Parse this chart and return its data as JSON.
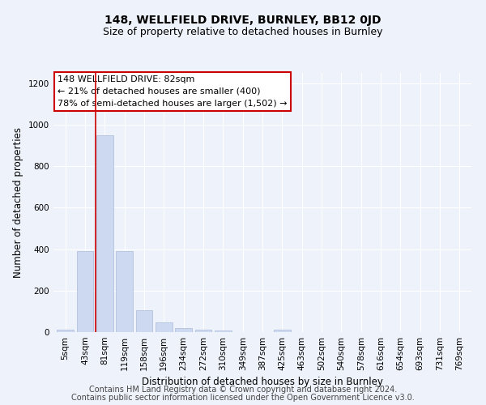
{
  "title": "148, WELLFIELD DRIVE, BURNLEY, BB12 0JD",
  "subtitle": "Size of property relative to detached houses in Burnley",
  "xlabel": "Distribution of detached houses by size in Burnley",
  "ylabel": "Number of detached properties",
  "categories": [
    "5sqm",
    "43sqm",
    "81sqm",
    "119sqm",
    "158sqm",
    "196sqm",
    "234sqm",
    "272sqm",
    "310sqm",
    "349sqm",
    "387sqm",
    "425sqm",
    "463sqm",
    "502sqm",
    "540sqm",
    "578sqm",
    "616sqm",
    "654sqm",
    "693sqm",
    "731sqm",
    "769sqm"
  ],
  "values": [
    10,
    390,
    950,
    390,
    105,
    48,
    18,
    10,
    8,
    0,
    0,
    10,
    0,
    0,
    0,
    0,
    0,
    0,
    0,
    0,
    0
  ],
  "bar_color": "#ccd9f0",
  "bar_edge_color": "#aabbd8",
  "vline_x": 1.55,
  "vline_color": "#cc0000",
  "annotation_text": "148 WELLFIELD DRIVE: 82sqm\n← 21% of detached houses are smaller (400)\n78% of semi-detached houses are larger (1,502) →",
  "annotation_box_color": "#ffffff",
  "annotation_box_edge_color": "#cc0000",
  "ylim": [
    0,
    1250
  ],
  "yticks": [
    0,
    200,
    400,
    600,
    800,
    1000,
    1200
  ],
  "footer_line1": "Contains HM Land Registry data © Crown copyright and database right 2024.",
  "footer_line2": "Contains public sector information licensed under the Open Government Licence v3.0.",
  "background_color": "#eef2fa",
  "grid_color": "#ffffff",
  "title_fontsize": 10,
  "subtitle_fontsize": 9,
  "axis_label_fontsize": 8.5,
  "tick_fontsize": 7.5,
  "footer_fontsize": 7,
  "annotation_fontsize": 8
}
